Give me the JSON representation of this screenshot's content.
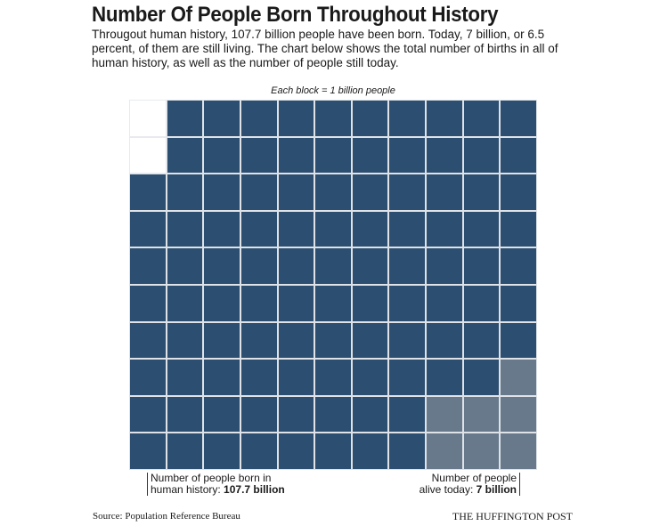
{
  "header": {
    "title": "Number Of People Born Throughout History",
    "description": "Througout human history, 107.7 billion people have been born. Today, 7 billion, or 6.5 percent, of them are still living. The chart below shows the total number of births in all of human history, as well as the number of people still today."
  },
  "chart_data": {
    "type": "waffle",
    "note": "Each block = 1 billion people",
    "rows": 10,
    "columns": 11,
    "total_born_billion": 107.7,
    "alive_billion": 7,
    "blocks_born": 108,
    "blocks_alive": 7,
    "empty_blocks": 2,
    "colors": {
      "born": "#2c4e70",
      "alive": "#67798b",
      "empty": "#ffffff"
    },
    "labels": {
      "born_text": "Number of people born in",
      "born_text2": "human history: ",
      "born_value": "107.7 billion",
      "alive_text": "Number of people",
      "alive_text2": "alive today: ",
      "alive_value": "7 billion"
    }
  },
  "footer": {
    "source": "Source: Population Reference Bureau",
    "brand": "THE HUFFINGTON POST"
  }
}
